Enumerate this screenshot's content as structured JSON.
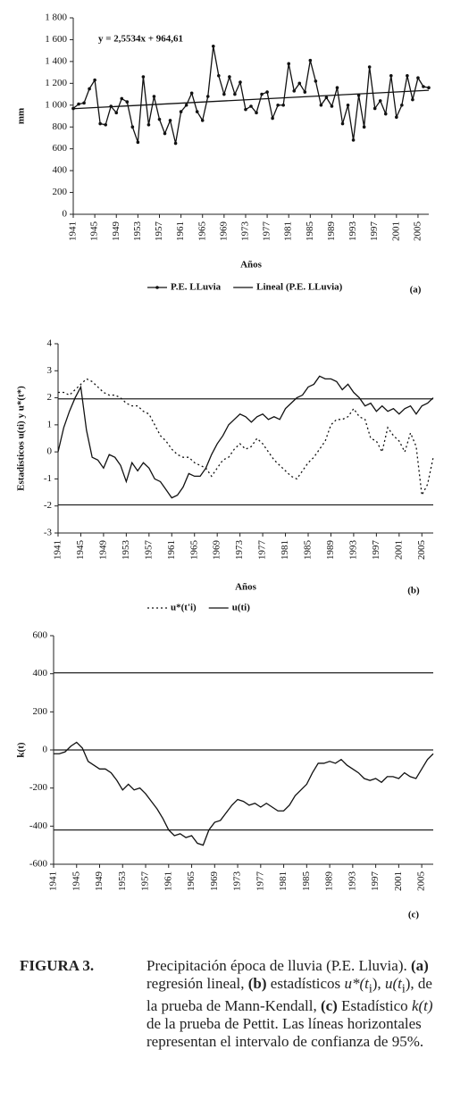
{
  "chart_data": [
    {
      "type": "line",
      "y_label": "mm",
      "x_label": "Años",
      "panel": "(a)",
      "annotation": "y = 2,5534x + 964,61",
      "x": [
        1941,
        1942,
        1943,
        1944,
        1945,
        1946,
        1947,
        1948,
        1949,
        1950,
        1951,
        1952,
        1953,
        1954,
        1955,
        1956,
        1957,
        1958,
        1959,
        1960,
        1961,
        1962,
        1963,
        1964,
        1965,
        1966,
        1967,
        1968,
        1969,
        1970,
        1971,
        1972,
        1973,
        1974,
        1975,
        1976,
        1977,
        1978,
        1979,
        1980,
        1981,
        1982,
        1983,
        1984,
        1985,
        1986,
        1987,
        1988,
        1989,
        1990,
        1991,
        1992,
        1993,
        1994,
        1995,
        1996,
        1997,
        1998,
        1999,
        2000,
        2001,
        2002,
        2003,
        2004,
        2005,
        2006,
        2007
      ],
      "xlim": [
        1941,
        2007
      ],
      "xticks": [
        1941,
        1945,
        1949,
        1953,
        1957,
        1961,
        1965,
        1969,
        1973,
        1977,
        1981,
        1985,
        1989,
        1993,
        1997,
        2001,
        2005
      ],
      "ylim": [
        0,
        1800
      ],
      "yticks": [
        0,
        200,
        400,
        600,
        800,
        {
          "value": 1000,
          "label": "1 000"
        },
        {
          "value": 1200,
          "label": "1 200"
        },
        {
          "value": 1400,
          "label": "1 400"
        },
        {
          "value": 1600,
          "label": "1 600"
        },
        {
          "value": 1800,
          "label": "1 800"
        }
      ],
      "series": [
        {
          "name": "P.E. LLuvia",
          "color": "#111",
          "style": "solid",
          "markers": true,
          "values": [
            970,
            1010,
            1020,
            1150,
            1230,
            830,
            820,
            990,
            930,
            1060,
            1030,
            800,
            660,
            1260,
            820,
            1080,
            870,
            740,
            860,
            650,
            940,
            1000,
            1110,
            940,
            860,
            1080,
            1540,
            1270,
            1100,
            1260,
            1100,
            1210,
            960,
            990,
            930,
            1100,
            1120,
            880,
            1000,
            1000,
            1380,
            1130,
            1200,
            1120,
            1410,
            1220,
            1000,
            1070,
            990,
            1160,
            830,
            1000,
            680,
            1090,
            800,
            1350,
            970,
            1040,
            920,
            1270,
            890,
            1000,
            1270,
            1050,
            1250,
            1170,
            1160
          ]
        },
        {
          "name": "Lineal (P.E. LLuvia)",
          "color": "#111",
          "style": "solid",
          "markers": false,
          "x": [
            1941,
            2007
          ],
          "values": [
            967.2,
            1136.1
          ]
        }
      ]
    },
    {
      "type": "line",
      "y_label": "Estadísticos u(ti) y u*(t*)",
      "x_label": "Años",
      "panel": "(b)",
      "x": [
        1941,
        1942,
        1943,
        1944,
        1945,
        1946,
        1947,
        1948,
        1949,
        1950,
        1951,
        1952,
        1953,
        1954,
        1955,
        1956,
        1957,
        1958,
        1959,
        1960,
        1961,
        1962,
        1963,
        1964,
        1965,
        1966,
        1967,
        1968,
        1969,
        1970,
        1971,
        1972,
        1973,
        1974,
        1975,
        1976,
        1977,
        1978,
        1979,
        1980,
        1981,
        1982,
        1983,
        1984,
        1985,
        1986,
        1987,
        1988,
        1989,
        1990,
        1991,
        1992,
        1993,
        1994,
        1995,
        1996,
        1997,
        1998,
        1999,
        2000,
        2001,
        2002,
        2003,
        2004,
        2005,
        2006,
        2007
      ],
      "xlim": [
        1941,
        2007
      ],
      "xticks": [
        1941,
        1945,
        1949,
        1953,
        1957,
        1961,
        1965,
        1969,
        1973,
        1977,
        1981,
        1985,
        1989,
        1993,
        1997,
        2001,
        2005
      ],
      "ylim": [
        -3,
        4
      ],
      "yticks": [
        -3,
        -2,
        -1,
        0,
        1,
        2,
        3,
        4
      ],
      "ref_lines": [
        1.96,
        -1.96
      ],
      "series": [
        {
          "name": "u*(t'i)",
          "color": "#111",
          "style": "dotted",
          "markers": false,
          "values": [
            2.2,
            2.2,
            2.1,
            2.3,
            2.5,
            2.7,
            2.6,
            2.4,
            2.2,
            2.1,
            2.1,
            2.0,
            1.8,
            1.7,
            1.7,
            1.5,
            1.4,
            1.0,
            0.6,
            0.4,
            0.1,
            -0.1,
            -0.2,
            -0.2,
            -0.4,
            -0.5,
            -0.6,
            -0.9,
            -0.6,
            -0.3,
            -0.2,
            0.1,
            0.3,
            0.1,
            0.2,
            0.5,
            0.3,
            0.0,
            -0.3,
            -0.5,
            -0.7,
            -0.9,
            -1.0,
            -0.7,
            -0.4,
            -0.2,
            0.1,
            0.4,
            1.0,
            1.2,
            1.2,
            1.3,
            1.6,
            1.3,
            1.2,
            0.5,
            0.4,
            0.0,
            0.9,
            0.6,
            0.4,
            0.0,
            0.7,
            0.2,
            -1.6,
            -1.2,
            -0.2
          ]
        },
        {
          "name": "u(ti)",
          "color": "#111",
          "style": "solid",
          "markers": false,
          "values": [
            0,
            0.9,
            1.5,
            2.0,
            2.4,
            0.8,
            -0.2,
            -0.3,
            -0.6,
            -0.1,
            -0.2,
            -0.5,
            -1.1,
            -0.4,
            -0.7,
            -0.4,
            -0.6,
            -1.0,
            -1.1,
            -1.4,
            -1.7,
            -1.6,
            -1.3,
            -0.8,
            -0.9,
            -0.9,
            -0.6,
            -0.1,
            0.3,
            0.6,
            1.0,
            1.2,
            1.4,
            1.3,
            1.1,
            1.3,
            1.4,
            1.2,
            1.3,
            1.2,
            1.6,
            1.8,
            2.0,
            2.1,
            2.4,
            2.5,
            2.8,
            2.7,
            2.7,
            2.6,
            2.3,
            2.5,
            2.2,
            2.0,
            1.7,
            1.8,
            1.5,
            1.7,
            1.5,
            1.6,
            1.4,
            1.6,
            1.7,
            1.4,
            1.7,
            1.8,
            2.0
          ]
        }
      ]
    },
    {
      "type": "line",
      "y_label": "k(t)",
      "panel": "(c)",
      "x": [
        1941,
        1942,
        1943,
        1944,
        1945,
        1946,
        1947,
        1948,
        1949,
        1950,
        1951,
        1952,
        1953,
        1954,
        1955,
        1956,
        1957,
        1958,
        1959,
        1960,
        1961,
        1962,
        1963,
        1964,
        1965,
        1966,
        1967,
        1968,
        1969,
        1970,
        1971,
        1972,
        1973,
        1974,
        1975,
        1976,
        1977,
        1978,
        1979,
        1980,
        1981,
        1982,
        1983,
        1984,
        1985,
        1986,
        1987,
        1988,
        1989,
        1990,
        1991,
        1992,
        1993,
        1994,
        1995,
        1996,
        1997,
        1998,
        1999,
        2000,
        2001,
        2002,
        2003,
        2004,
        2005,
        2006,
        2007
      ],
      "xlim": [
        1941,
        2007
      ],
      "xticks": [
        1941,
        1945,
        1949,
        1953,
        1957,
        1961,
        1965,
        1969,
        1973,
        1977,
        1981,
        1985,
        1989,
        1993,
        1997,
        2001,
        2005
      ],
      "ylim": [
        -600,
        600
      ],
      "yticks": [
        -600,
        -400,
        -200,
        0,
        200,
        400,
        600
      ],
      "ref_lines": [
        405,
        -420,
        0
      ],
      "series": [
        {
          "name": "k(t)",
          "color": "#111",
          "style": "solid",
          "markers": false,
          "values": [
            -20,
            -20,
            -10,
            20,
            40,
            10,
            -60,
            -80,
            -100,
            -100,
            -120,
            -160,
            -210,
            -180,
            -210,
            -200,
            -230,
            -270,
            -310,
            -360,
            -420,
            -450,
            -440,
            -460,
            -450,
            -490,
            -500,
            -420,
            -380,
            -370,
            -330,
            -290,
            -260,
            -270,
            -290,
            -280,
            -300,
            -280,
            -300,
            -320,
            -320,
            -290,
            -240,
            -210,
            -180,
            -120,
            -70,
            -70,
            -60,
            -70,
            -50,
            -80,
            -100,
            -120,
            -150,
            -160,
            -150,
            -170,
            -140,
            -140,
            -150,
            -120,
            -140,
            -150,
            -100,
            -50,
            -20
          ]
        }
      ]
    }
  ],
  "caption": {
    "label": "FIGURA 3.",
    "segments": [
      "Precipitación época de lluvia (P.E. Lluvia). ",
      "(a)",
      " regresión lineal, ",
      "(b)",
      " estadísticos ",
      "u*",
      "(t",
      "i",
      "), ",
      "u",
      "(t",
      "i",
      "), de la prueba de Mann-Kendall, ",
      "(c)",
      " Estadístico ",
      "k",
      "(t)",
      " de la prueba de Pettit. Las líneas horizontales representan el intervalo de confianza de 95%."
    ]
  }
}
